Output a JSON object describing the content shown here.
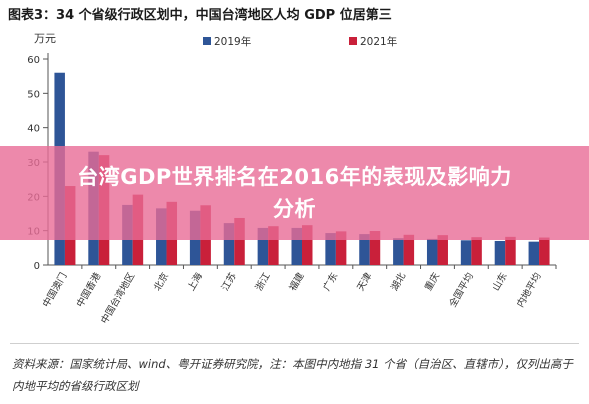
{
  "figure_title": "图表3：34 个省级行政区划中，中国台湾地区人均 GDP 位居第三",
  "overlay_title": "台湾GDP世界排名在2016年的表现及影响力分析",
  "source_note": "资料来源：国家统计局、wind、粤开证券研究院，注：本图中内地指 31 个省（自治区、直辖市），仅列出高于内地平均的省级行政区划",
  "colors": {
    "series_2019": "#2e5597",
    "series_2021": "#c9203a",
    "axis": "#555555"
  },
  "chart_data": {
    "type": "bar",
    "title": "图表3：34 个省级行政区划中，中国台湾地区人均 GDP 位居第三",
    "ylabel": "万元",
    "xlabel": "",
    "ylim": [
      0,
      60
    ],
    "yticks": [
      0,
      10,
      20,
      30,
      40,
      50,
      60
    ],
    "legend_position": "top",
    "categories": [
      "中国澳门",
      "中国香港",
      "中国台湾地区",
      "北京",
      "上海",
      "江苏",
      "浙江",
      "福建",
      "广东",
      "天津",
      "湖北",
      "重庆",
      "全国平均",
      "山东",
      "内地平均"
    ],
    "series": [
      {
        "name": "2019年",
        "values": [
          56,
          33,
          17.5,
          16.5,
          15.8,
          12.2,
          10.8,
          10.8,
          9.3,
          9.0,
          7.8,
          7.6,
          7.2,
          7.0,
          6.8
        ]
      },
      {
        "name": "2021年",
        "values": [
          23,
          32,
          20.5,
          18.4,
          17.4,
          13.7,
          11.3,
          11.6,
          9.8,
          9.9,
          8.8,
          8.7,
          8.1,
          8.2,
          8.0
        ]
      }
    ]
  }
}
